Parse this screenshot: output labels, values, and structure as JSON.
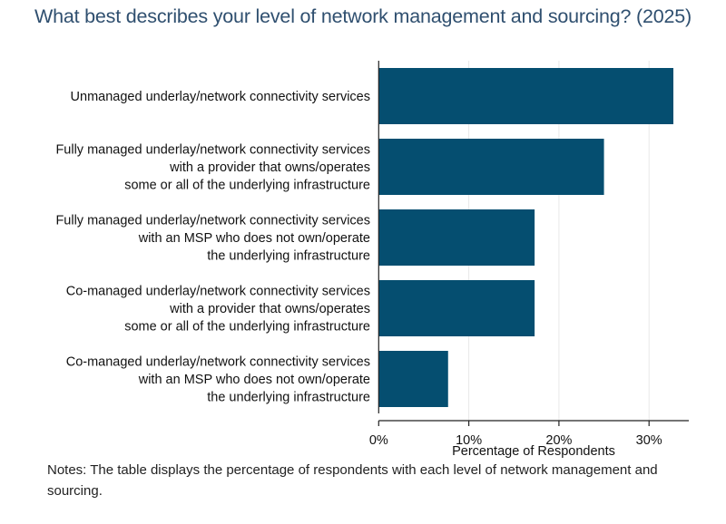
{
  "chart_data": {
    "type": "bar",
    "orientation": "horizontal",
    "title": "What best describes your level of network management and sourcing? (2025)",
    "xlabel": "Percentage of Respondents",
    "ylabel": "",
    "xlim": [
      0,
      34
    ],
    "xticks": [
      "0%",
      "10%",
      "20%",
      "30%"
    ],
    "xtick_values": [
      0,
      10,
      20,
      30
    ],
    "grid": "vertical",
    "bar_color": "#054e70",
    "categories": [
      [
        "Unmanaged underlay/network connectivity services"
      ],
      [
        "Fully managed underlay/network connectivity services",
        "with a provider that owns/operates",
        "some or all of the underlying infrastructure"
      ],
      [
        "Fully managed underlay/network connectivity services",
        "with an MSP who does not own/operate",
        "the underlying infrastructure"
      ],
      [
        "Co-managed underlay/network connectivity services",
        "with a provider that owns/operates",
        "some or all of the underlying infrastructure"
      ],
      [
        "Co-managed underlay/network connectivity services",
        "with an MSP who does not own/operate",
        "the underlying infrastructure"
      ]
    ],
    "values": [
      32.7,
      25.0,
      17.3,
      17.3,
      7.7
    ]
  },
  "notes": "Notes: The table displays the percentage of respondents with each level of network management and sourcing."
}
